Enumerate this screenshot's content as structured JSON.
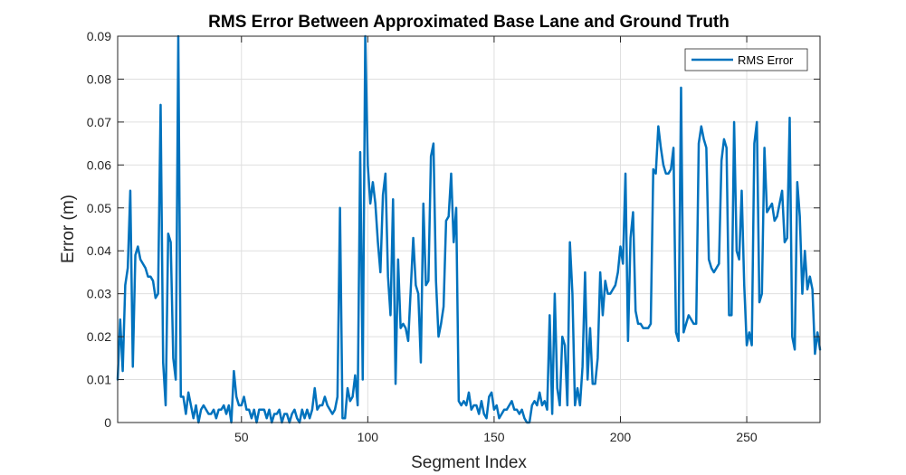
{
  "chart_data": {
    "type": "line",
    "title": "RMS Error Between Approximated Base Lane and Ground Truth",
    "xlabel": "Segment Index",
    "ylabel": "Error (m)",
    "xlim": [
      1,
      279
    ],
    "ylim": [
      0,
      0.09
    ],
    "xticks": [
      50,
      100,
      150,
      200,
      250
    ],
    "yticks": [
      0,
      0.01,
      0.02,
      0.03,
      0.04,
      0.05,
      0.06,
      0.07,
      0.08,
      0.09
    ],
    "xtick_labels": [
      "50",
      "100",
      "150",
      "200",
      "250"
    ],
    "ytick_labels": [
      "0",
      "0.01",
      "0.02",
      "0.03",
      "0.04",
      "0.05",
      "0.06",
      "0.07",
      "0.08",
      "0.09"
    ],
    "grid": true,
    "legend_position": "top-right",
    "series": [
      {
        "name": "RMS Error",
        "color": "#0072BD",
        "values": [
          0.01,
          0.024,
          0.012,
          0.032,
          0.036,
          0.054,
          0.013,
          0.039,
          0.041,
          0.038,
          0.037,
          0.036,
          0.034,
          0.034,
          0.033,
          0.029,
          0.03,
          0.074,
          0.014,
          0.004,
          0.044,
          0.042,
          0.015,
          0.01,
          0.09,
          0.006,
          0.006,
          0.002,
          0.007,
          0.004,
          0.001,
          0.004,
          0.0,
          0.003,
          0.004,
          0.003,
          0.002,
          0.002,
          0.003,
          0.001,
          0.003,
          0.003,
          0.004,
          0.002,
          0.004,
          0.0,
          0.012,
          0.006,
          0.004,
          0.004,
          0.006,
          0.003,
          0.003,
          0.001,
          0.003,
          0.0,
          0.003,
          0.003,
          0.003,
          0.001,
          0.003,
          0.0,
          0.002,
          0.002,
          0.003,
          0.0,
          0.002,
          0.002,
          0.0,
          0.002,
          0.003,
          0.001,
          0.0,
          0.003,
          0.001,
          0.003,
          0.001,
          0.003,
          0.008,
          0.003,
          0.004,
          0.004,
          0.006,
          0.004,
          0.003,
          0.002,
          0.003,
          0.006,
          0.05,
          0.001,
          0.001,
          0.008,
          0.005,
          0.006,
          0.011,
          0.004,
          0.063,
          0.01,
          0.09,
          0.06,
          0.051,
          0.056,
          0.051,
          0.042,
          0.035,
          0.053,
          0.058,
          0.034,
          0.025,
          0.052,
          0.009,
          0.038,
          0.022,
          0.023,
          0.022,
          0.019,
          0.031,
          0.043,
          0.032,
          0.03,
          0.014,
          0.051,
          0.032,
          0.033,
          0.062,
          0.065,
          0.033,
          0.02,
          0.023,
          0.027,
          0.047,
          0.048,
          0.058,
          0.042,
          0.05,
          0.005,
          0.004,
          0.005,
          0.004,
          0.007,
          0.003,
          0.004,
          0.004,
          0.002,
          0.005,
          0.002,
          0.001,
          0.006,
          0.007,
          0.003,
          0.004,
          0.001,
          0.002,
          0.003,
          0.003,
          0.004,
          0.005,
          0.003,
          0.003,
          0.002,
          0.003,
          0.001,
          0.0,
          0.0,
          0.004,
          0.005,
          0.004,
          0.007,
          0.004,
          0.005,
          0.003,
          0.025,
          0.002,
          0.03,
          0.008,
          0.004,
          0.02,
          0.018,
          0.004,
          0.042,
          0.03,
          0.004,
          0.008,
          0.004,
          0.013,
          0.035,
          0.01,
          0.022,
          0.009,
          0.009,
          0.015,
          0.035,
          0.025,
          0.033,
          0.03,
          0.03,
          0.031,
          0.032,
          0.035,
          0.041,
          0.037,
          0.058,
          0.019,
          0.043,
          0.049,
          0.026,
          0.023,
          0.023,
          0.022,
          0.022,
          0.022,
          0.023,
          0.059,
          0.058,
          0.069,
          0.064,
          0.06,
          0.058,
          0.058,
          0.059,
          0.064,
          0.021,
          0.019,
          0.078,
          0.021,
          0.023,
          0.025,
          0.024,
          0.023,
          0.023,
          0.065,
          0.069,
          0.066,
          0.064,
          0.038,
          0.036,
          0.035,
          0.036,
          0.037,
          0.061,
          0.066,
          0.064,
          0.025,
          0.025,
          0.07,
          0.04,
          0.038,
          0.054,
          0.032,
          0.018,
          0.021,
          0.018,
          0.065,
          0.07,
          0.028,
          0.03,
          0.064,
          0.049,
          0.05,
          0.051,
          0.047,
          0.048,
          0.051,
          0.054,
          0.042,
          0.043,
          0.071,
          0.02,
          0.017,
          0.056,
          0.048,
          0.03,
          0.04,
          0.031,
          0.034,
          0.031,
          0.016,
          0.021,
          0.017
        ]
      }
    ]
  }
}
